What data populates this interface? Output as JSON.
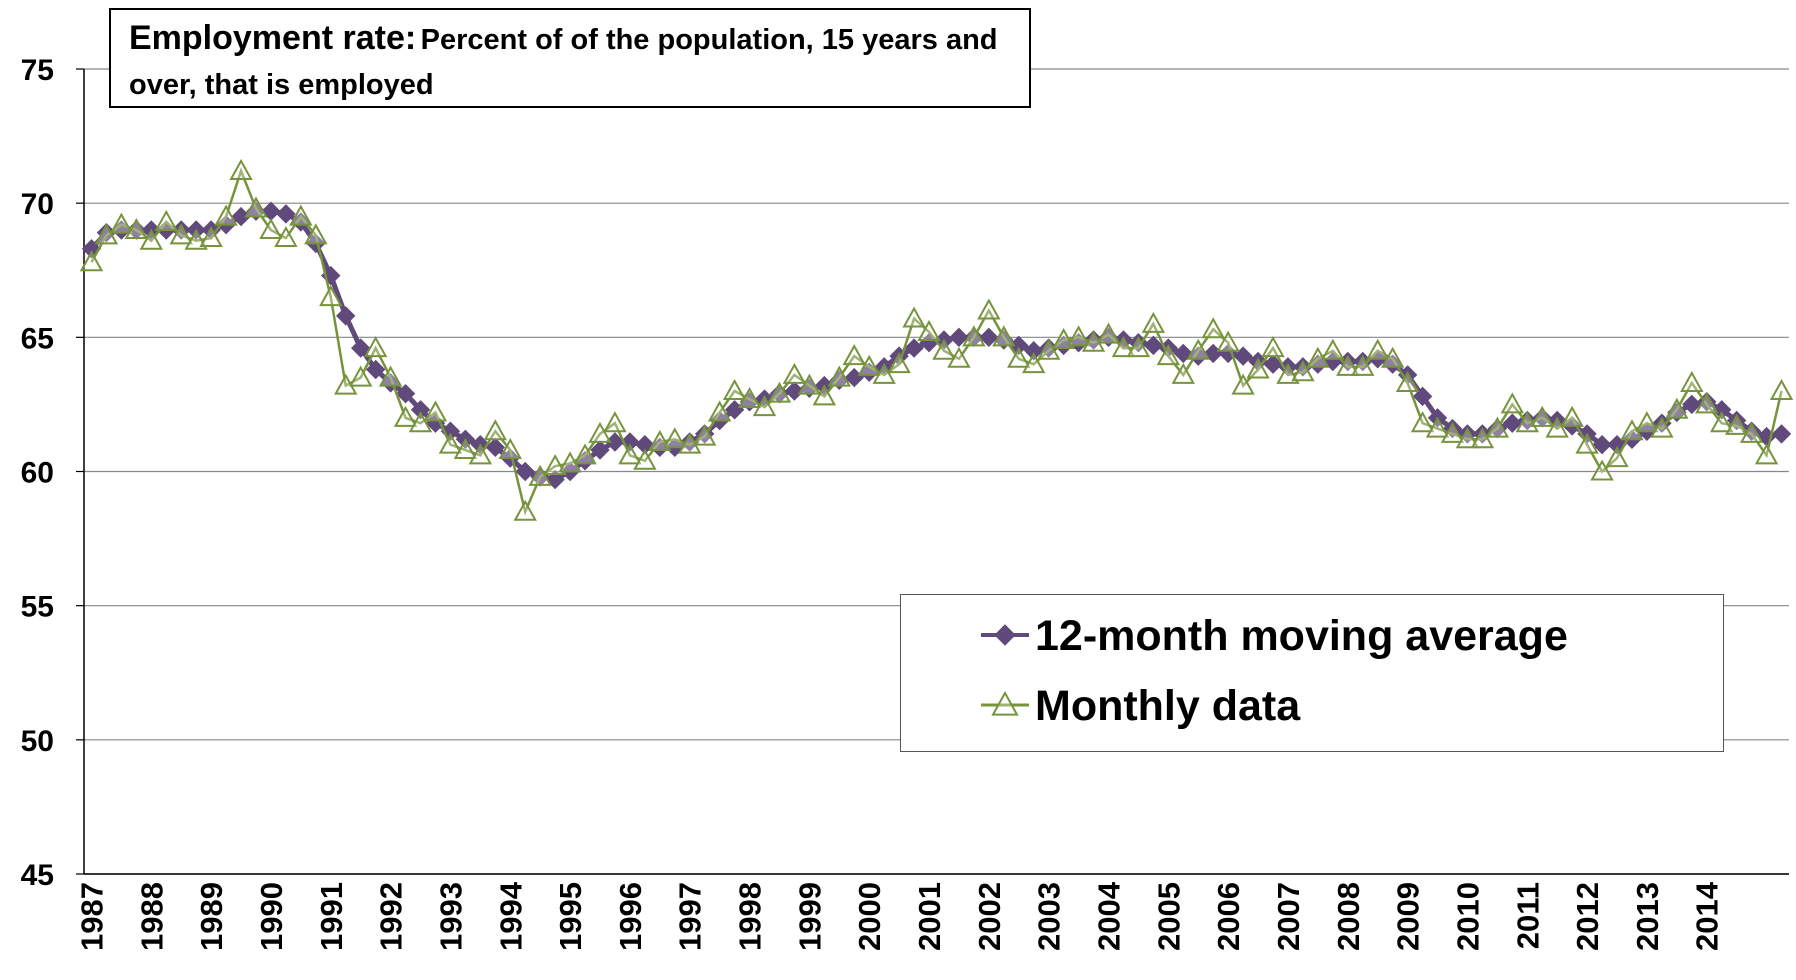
{
  "chart_data": {
    "type": "line",
    "title": "Employment rate:",
    "subtitle": "Percent of of the population, 15 years and over, that is employed",
    "categories": [
      "1987",
      null,
      null,
      null,
      "1988",
      null,
      null,
      null,
      "1989",
      null,
      null,
      null,
      "1990",
      null,
      null,
      null,
      "1991",
      null,
      null,
      null,
      "1992",
      null,
      null,
      null,
      "1993",
      null,
      null,
      null,
      "1994",
      null,
      null,
      null,
      "1995",
      null,
      null,
      null,
      "1996",
      null,
      null,
      null,
      "1997",
      null,
      null,
      null,
      "1998",
      null,
      null,
      null,
      "1999",
      null,
      null,
      null,
      "2000",
      null,
      null,
      null,
      "2001",
      null,
      null,
      null,
      "2002",
      null,
      null,
      null,
      "2003",
      null,
      null,
      null,
      "2004",
      null,
      null,
      null,
      "2005",
      null,
      null,
      null,
      "2006",
      null,
      null,
      null,
      "2007",
      null,
      null,
      null,
      "2008",
      null,
      null,
      null,
      "2009",
      null,
      null,
      null,
      "2010",
      null,
      null,
      null,
      "2011",
      null,
      null,
      null,
      "2012",
      null,
      null,
      null,
      "2013",
      null,
      null,
      null,
      "2014",
      null,
      null,
      null,
      null,
      null
    ],
    "series": [
      {
        "name": "12-month moving average",
        "color": "#604a7b",
        "marker": "diamond",
        "values": [
          68.3,
          68.9,
          69.0,
          69.0,
          69.0,
          69.0,
          69.0,
          69.0,
          69.0,
          69.2,
          69.5,
          69.7,
          69.7,
          69.6,
          69.3,
          68.5,
          67.3,
          65.8,
          64.6,
          63.8,
          63.3,
          62.9,
          62.3,
          61.8,
          61.5,
          61.2,
          61.0,
          60.9,
          60.5,
          60.0,
          59.8,
          59.7,
          60.0,
          60.4,
          60.8,
          61.1,
          61.1,
          61.0,
          60.9,
          60.9,
          61.1,
          61.4,
          61.9,
          62.3,
          62.6,
          62.7,
          62.9,
          63.0,
          63.1,
          63.2,
          63.4,
          63.5,
          63.7,
          63.9,
          64.3,
          64.6,
          64.8,
          64.9,
          65.0,
          65.0,
          65.0,
          64.9,
          64.7,
          64.5,
          64.6,
          64.7,
          64.8,
          64.9,
          65.0,
          64.9,
          64.8,
          64.7,
          64.6,
          64.4,
          64.3,
          64.4,
          64.4,
          64.3,
          64.1,
          64.0,
          63.9,
          63.9,
          64.0,
          64.1,
          64.1,
          64.1,
          64.2,
          64.0,
          63.6,
          62.8,
          62.0,
          61.6,
          61.4,
          61.4,
          61.6,
          61.8,
          61.9,
          62.0,
          61.9,
          61.7,
          61.4,
          61.0,
          61.0,
          61.2,
          61.5,
          61.8,
          62.2,
          62.5,
          62.6,
          62.3,
          61.9,
          61.5,
          61.3,
          61.4
        ]
      },
      {
        "name": "Monthly data",
        "color": "#77933c",
        "marker": "triangle",
        "values": [
          67.8,
          68.8,
          69.2,
          69.0,
          68.6,
          69.3,
          68.8,
          68.6,
          68.7,
          69.5,
          71.2,
          69.8,
          69.0,
          68.7,
          69.5,
          68.8,
          66.5,
          63.2,
          63.5,
          64.6,
          63.5,
          62.0,
          61.8,
          62.2,
          61.0,
          60.8,
          60.6,
          61.5,
          60.8,
          58.5,
          59.8,
          60.2,
          60.3,
          60.6,
          61.4,
          61.8,
          60.6,
          60.4,
          61.1,
          61.2,
          61.0,
          61.3,
          62.2,
          63.0,
          62.7,
          62.4,
          62.9,
          63.6,
          63.2,
          62.8,
          63.5,
          64.3,
          63.9,
          63.6,
          64.0,
          65.7,
          65.2,
          64.5,
          64.2,
          65.0,
          66.0,
          65.0,
          64.2,
          64.0,
          64.5,
          64.9,
          65.0,
          64.8,
          65.1,
          64.6,
          64.6,
          65.5,
          64.3,
          63.6,
          64.5,
          65.3,
          64.8,
          63.2,
          63.8,
          64.6,
          63.6,
          63.7,
          64.2,
          64.5,
          63.9,
          63.9,
          64.5,
          64.2,
          63.3,
          61.8,
          61.6,
          61.4,
          61.2,
          61.2,
          61.6,
          62.5,
          61.8,
          62.0,
          61.6,
          62.0,
          61.0,
          60.0,
          60.5,
          61.5,
          61.8,
          61.6,
          62.3,
          63.3,
          62.5,
          61.8,
          61.7,
          61.4,
          60.6,
          63.0
        ]
      }
    ],
    "ylim": [
      45,
      75
    ],
    "yticks": [
      45,
      50,
      55,
      60,
      65,
      70,
      75
    ],
    "grid": true,
    "legend": "right"
  }
}
